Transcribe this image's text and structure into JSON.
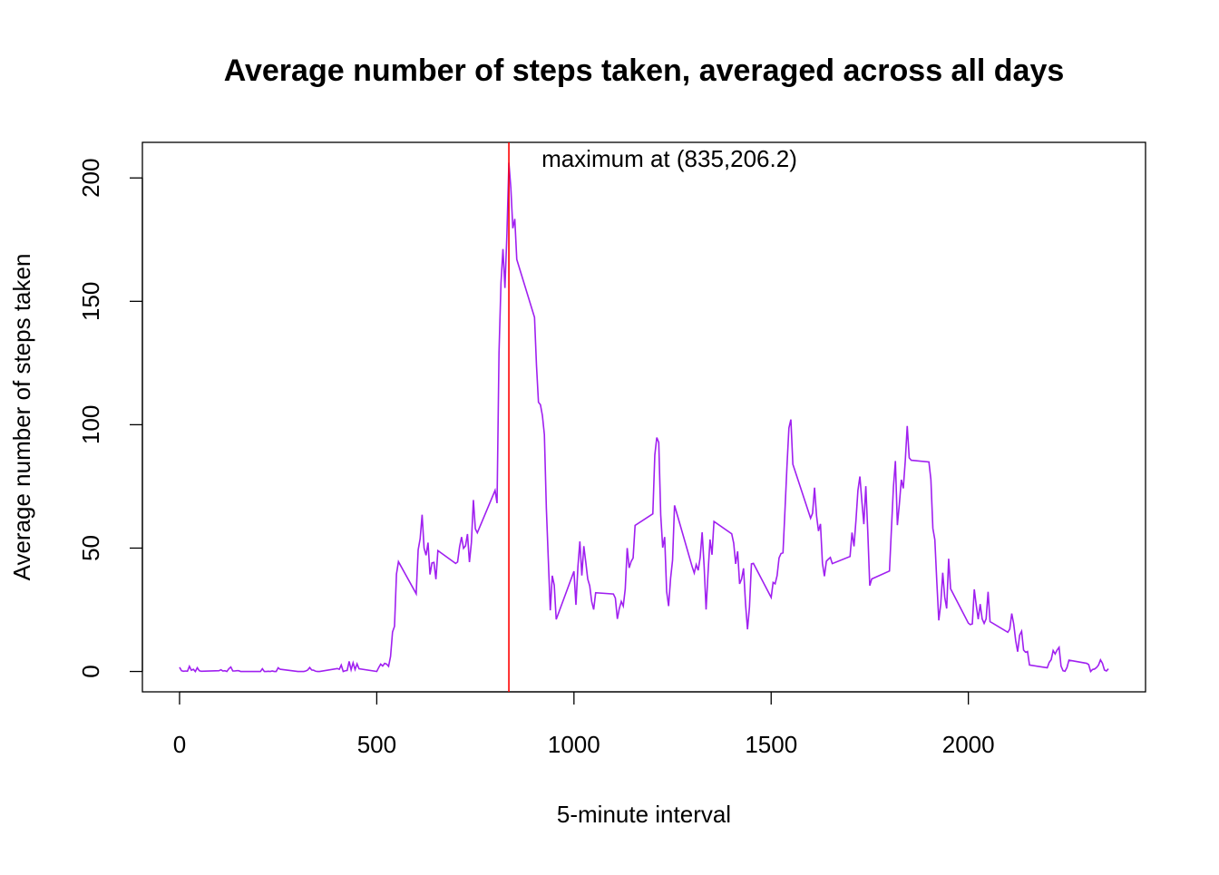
{
  "chart_data": {
    "type": "line",
    "title": "Average number of steps taken, averaged across all days",
    "x_label": "5-minute interval",
    "y_label": "Average number of steps taken",
    "annotation": "maximum at (835,206.2)",
    "color": "#a020f0",
    "marker_color": "#ff0000",
    "xlim": [
      -94.2,
      2449.2
    ],
    "ylim": [
      -8.25,
      214.42
    ],
    "xticks": [
      0,
      500,
      1000,
      1500,
      2000
    ],
    "yticks": [
      0,
      50,
      100,
      150,
      200
    ],
    "x": [
      0,
      5,
      10,
      15,
      20,
      25,
      30,
      35,
      40,
      45,
      50,
      55,
      100,
      105,
      110,
      115,
      120,
      125,
      130,
      135,
      140,
      145,
      150,
      155,
      200,
      205,
      210,
      215,
      220,
      225,
      230,
      235,
      240,
      245,
      250,
      255,
      300,
      305,
      310,
      315,
      320,
      325,
      330,
      335,
      340,
      345,
      350,
      355,
      400,
      405,
      410,
      415,
      420,
      425,
      430,
      435,
      440,
      445,
      450,
      455,
      500,
      505,
      510,
      515,
      520,
      525,
      530,
      535,
      540,
      545,
      550,
      555,
      600,
      605,
      610,
      615,
      620,
      625,
      630,
      635,
      640,
      645,
      650,
      655,
      700,
      705,
      710,
      715,
      720,
      725,
      730,
      735,
      740,
      745,
      750,
      755,
      800,
      805,
      810,
      815,
      820,
      825,
      830,
      835,
      840,
      845,
      850,
      855,
      900,
      905,
      910,
      915,
      920,
      925,
      930,
      935,
      940,
      945,
      950,
      955,
      1000,
      1005,
      1010,
      1015,
      1020,
      1025,
      1030,
      1035,
      1040,
      1045,
      1050,
      1055,
      1100,
      1105,
      1110,
      1115,
      1120,
      1125,
      1130,
      1135,
      1140,
      1145,
      1150,
      1155,
      1200,
      1205,
      1210,
      1215,
      1220,
      1225,
      1230,
      1235,
      1240,
      1245,
      1250,
      1255,
      1300,
      1305,
      1310,
      1315,
      1320,
      1325,
      1330,
      1335,
      1340,
      1345,
      1350,
      1355,
      1400,
      1405,
      1410,
      1415,
      1420,
      1425,
      1430,
      1435,
      1440,
      1445,
      1450,
      1455,
      1500,
      1505,
      1510,
      1515,
      1520,
      1525,
      1530,
      1535,
      1540,
      1545,
      1550,
      1555,
      1600,
      1605,
      1610,
      1615,
      1620,
      1625,
      1630,
      1635,
      1640,
      1645,
      1650,
      1655,
      1700,
      1705,
      1710,
      1715,
      1720,
      1725,
      1730,
      1735,
      1740,
      1745,
      1750,
      1755,
      1800,
      1805,
      1810,
      1815,
      1820,
      1825,
      1830,
      1835,
      1840,
      1845,
      1850,
      1855,
      1900,
      1905,
      1910,
      1915,
      1920,
      1925,
      1930,
      1935,
      1940,
      1945,
      1950,
      1955,
      2000,
      2005,
      2010,
      2015,
      2020,
      2025,
      2030,
      2035,
      2040,
      2045,
      2050,
      2055,
      2100,
      2105,
      2110,
      2115,
      2120,
      2125,
      2130,
      2135,
      2140,
      2145,
      2150,
      2155,
      2200,
      2205,
      2210,
      2215,
      2220,
      2225,
      2230,
      2235,
      2240,
      2245,
      2250,
      2255,
      2300,
      2305,
      2310,
      2315,
      2320,
      2325,
      2330,
      2335,
      2340,
      2345,
      2350,
      2355
    ],
    "values": [
      1.7,
      0.3,
      0.1,
      0.2,
      0.1,
      2.1,
      0.5,
      0.9,
      0,
      1.5,
      0.3,
      0.1,
      0.3,
      0.7,
      0.2,
      0.3,
      0,
      1.1,
      1.8,
      0.2,
      0.2,
      0.3,
      0.3,
      0,
      0,
      0,
      1.1,
      0,
      0,
      0.1,
      0,
      0.2,
      0,
      0,
      1.5,
      0.9,
      0,
      0,
      0,
      0,
      0.2,
      0.6,
      1.6,
      0.6,
      0.5,
      0.1,
      0,
      0,
      1.2,
      0.9,
      2.6,
      0,
      0.3,
      0.4,
      4.1,
      0.7,
      3.5,
      0.8,
      3.1,
      1.1,
      0,
      1.6,
      3.0,
      2.2,
      3.3,
      3.0,
      2.1,
      6.1,
      16.0,
      18.3,
      39.5,
      44.5,
      31.5,
      49.3,
      53.8,
      63.5,
      50.0,
      47.1,
      52.2,
      39.3,
      44.0,
      44.2,
      37.4,
      49.0,
      43.8,
      44.4,
      50.5,
      54.5,
      49.9,
      50.9,
      55.7,
      44.3,
      52.3,
      69.5,
      57.8,
      56.2,
      73.4,
      68.2,
      129.4,
      157.5,
      171.2,
      155.4,
      177.3,
      206.2,
      195.9,
      179.6,
      183.4,
      167.0,
      143.5,
      124.0,
      109.1,
      108.1,
      103.7,
      96.0,
      66.2,
      45.2,
      24.8,
      38.8,
      35.0,
      21.1,
      40.6,
      27.0,
      42.4,
      52.7,
      38.9,
      50.8,
      44.3,
      37.4,
      34.7,
      28.3,
      25.1,
      31.9,
      31.4,
      29.7,
      21.3,
      25.5,
      28.4,
      26.5,
      33.4,
      50.0,
      42.0,
      44.6,
      46.0,
      59.2,
      63.9,
      87.7,
      94.8,
      92.8,
      63.4,
      50.2,
      54.5,
      32.4,
      26.5,
      37.7,
      45.1,
      67.3,
      42.3,
      39.9,
      43.3,
      41.0,
      46.2,
      56.4,
      42.8,
      25.1,
      40.0,
      53.5,
      47.3,
      60.8,
      55.8,
      52.0,
      43.6,
      48.7,
      35.5,
      37.5,
      41.8,
      27.5,
      17.1,
      26.1,
      43.6,
      43.8,
      30.0,
      36.1,
      35.5,
      38.8,
      46.0,
      47.8,
      48.1,
      65.3,
      82.9,
      98.7,
      102.1,
      84.0,
      62.1,
      64.1,
      74.5,
      63.2,
      56.9,
      59.8,
      43.9,
      38.6,
      44.7,
      45.5,
      46.2,
      43.7,
      46.6,
      56.3,
      50.7,
      61.2,
      73.4,
      79.0,
      68.9,
      59.7,
      75.1,
      56.5,
      34.8,
      37.5,
      40.7,
      58.0,
      74.7,
      85.3,
      59.3,
      67.8,
      77.7,
      74.2,
      85.3,
      99.5,
      86.6,
      85.6,
      84.9,
      77.8,
      58.0,
      53.4,
      36.3,
      20.7,
      27.4,
      40.0,
      30.2,
      25.5,
      45.7,
      33.5,
      19.6,
      19.0,
      19.3,
      33.3,
      26.8,
      21.2,
      27.3,
      21.3,
      19.5,
      21.3,
      32.3,
      20.2,
      15.9,
      17.2,
      23.5,
      19.2,
      12.5,
      8.0,
      14.7,
      16.3,
      8.7,
      7.8,
      8.1,
      2.6,
      1.5,
      3.7,
      4.8,
      8.5,
      7.1,
      8.7,
      9.8,
      2.2,
      0.3,
      0.1,
      1.6,
      4.6,
      3.3,
      2.8,
      0,
      0.8,
      1.0,
      1.6,
      2.6,
      4.7,
      3.3,
      0.6,
      0.2,
      1.1
    ],
    "max_index": 103
  }
}
